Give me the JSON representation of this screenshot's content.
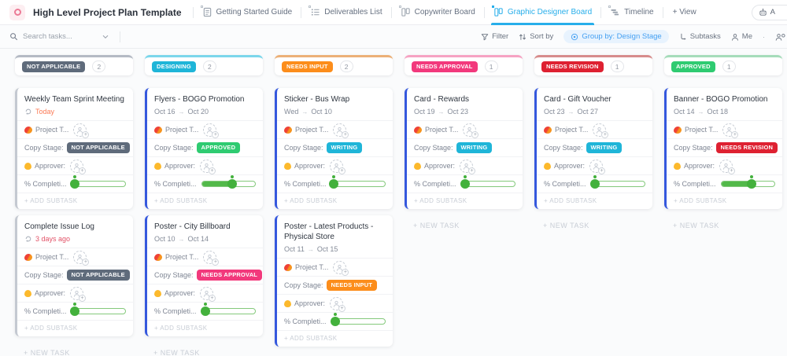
{
  "header": {
    "title": "High Level Project Plan Template",
    "tabs": [
      {
        "label": "Getting Started Guide"
      },
      {
        "label": "Deliverables List"
      },
      {
        "label": "Copywriter Board"
      },
      {
        "label": "Graphic Designer Board"
      },
      {
        "label": "Timeline"
      }
    ],
    "add_view_label": "+ View",
    "automate_label": "A"
  },
  "toolbar": {
    "search_placeholder": "Search tasks...",
    "filter_label": "Filter",
    "sort_label": "Sort by",
    "group_by_label": "Group by: Design Stage",
    "subtasks_label": "Subtasks",
    "me_label": "Me"
  },
  "board": {
    "field_labels": {
      "project_team": "Project T...",
      "copy_stage": "Copy Stage:",
      "approver": "Approver:",
      "percent_complete": "% Completi..."
    },
    "add_subtask_label": "+ ADD SUBTASK",
    "new_task_label": "+ NEW TASK",
    "columns": [
      {
        "stage": "NOT APPLICABLE",
        "count": "2",
        "stage_color": "#5f6b7b",
        "top_border_color": "#b4bac4",
        "card_accent_color": "#c4c9d1",
        "cards": [
          {
            "title": "Weekly Team Sprint Meeting",
            "recurring": "Today",
            "recurring_color": "#fb7a55",
            "copy_stage": "NOT APPLICABLE",
            "copy_stage_color": "#5f6b7b",
            "progress": 5
          },
          {
            "title": "Complete Issue Log",
            "recurring": "3 days ago",
            "recurring_color": "#e25368",
            "copy_stage": "NOT APPLICABLE",
            "copy_stage_color": "#5f6b7b",
            "progress": 5
          }
        ]
      },
      {
        "stage": "DESIGNING",
        "count": "2",
        "stage_color": "#1fb5d8",
        "top_border_color": "#7bd6eb",
        "card_accent_color": "#3558dd",
        "cards": [
          {
            "title": "Flyers - BOGO Promotion",
            "date_start": "Oct 16",
            "date_end": "Oct 20",
            "copy_stage": "APPROVED",
            "copy_stage_color": "#2fcb71",
            "progress": 57
          },
          {
            "title": "Poster - City Billboard",
            "date_start": "Oct 10",
            "date_end": "Oct 14",
            "copy_stage": "NEEDS APPROVAL",
            "copy_stage_color": "#f2397c",
            "progress": 7
          }
        ]
      },
      {
        "stage": "NEEDS INPUT",
        "count": "2",
        "stage_color": "#fc8d1b",
        "top_border_color": "#ecb077",
        "card_accent_color": "#3558dd",
        "cards": [
          {
            "title": "Sticker - Bus Wrap",
            "date_start": "Wed",
            "date_end": "Oct 10",
            "copy_stage": "WRITING",
            "copy_stage_color": "#1fb5d8",
            "progress": 4
          },
          {
            "title": "Poster - Latest Products - Physical Store",
            "date_start": "Oct 11",
            "date_end": "Oct 15",
            "copy_stage": "NEEDS INPUT",
            "copy_stage_color": "#fc8d1b",
            "progress": 6
          }
        ]
      },
      {
        "stage": "NEEDS APPROVAL",
        "count": "1",
        "stage_color": "#f2397c",
        "top_border_color": "#f6a3c3",
        "card_accent_color": "#3558dd",
        "cards": [
          {
            "title": "Card - Rewards",
            "date_start": "Oct 19",
            "date_end": "Oct 23",
            "copy_stage": "WRITING",
            "copy_stage_color": "#1fb5d8",
            "progress": 6
          }
        ]
      },
      {
        "stage": "NEEDS REVISION",
        "count": "1",
        "stage_color": "#de2131",
        "top_border_color": "#d78c8c",
        "card_accent_color": "#3558dd",
        "cards": [
          {
            "title": "Card - Gift Voucher",
            "date_start": "Oct 23",
            "date_end": "Oct 27",
            "copy_stage": "WRITING",
            "copy_stage_color": "#1fb5d8",
            "progress": 6
          }
        ]
      },
      {
        "stage": "APPROVED",
        "count": "1",
        "stage_color": "#2fcb71",
        "top_border_color": "#a5dcba",
        "card_accent_color": "#3558dd",
        "cards": [
          {
            "title": "Banner - BOGO Promotion",
            "date_start": "Oct 14",
            "date_end": "Oct 18",
            "copy_stage": "NEEDS REVISION",
            "copy_stage_color": "#de2131",
            "progress": 57
          }
        ]
      }
    ]
  }
}
